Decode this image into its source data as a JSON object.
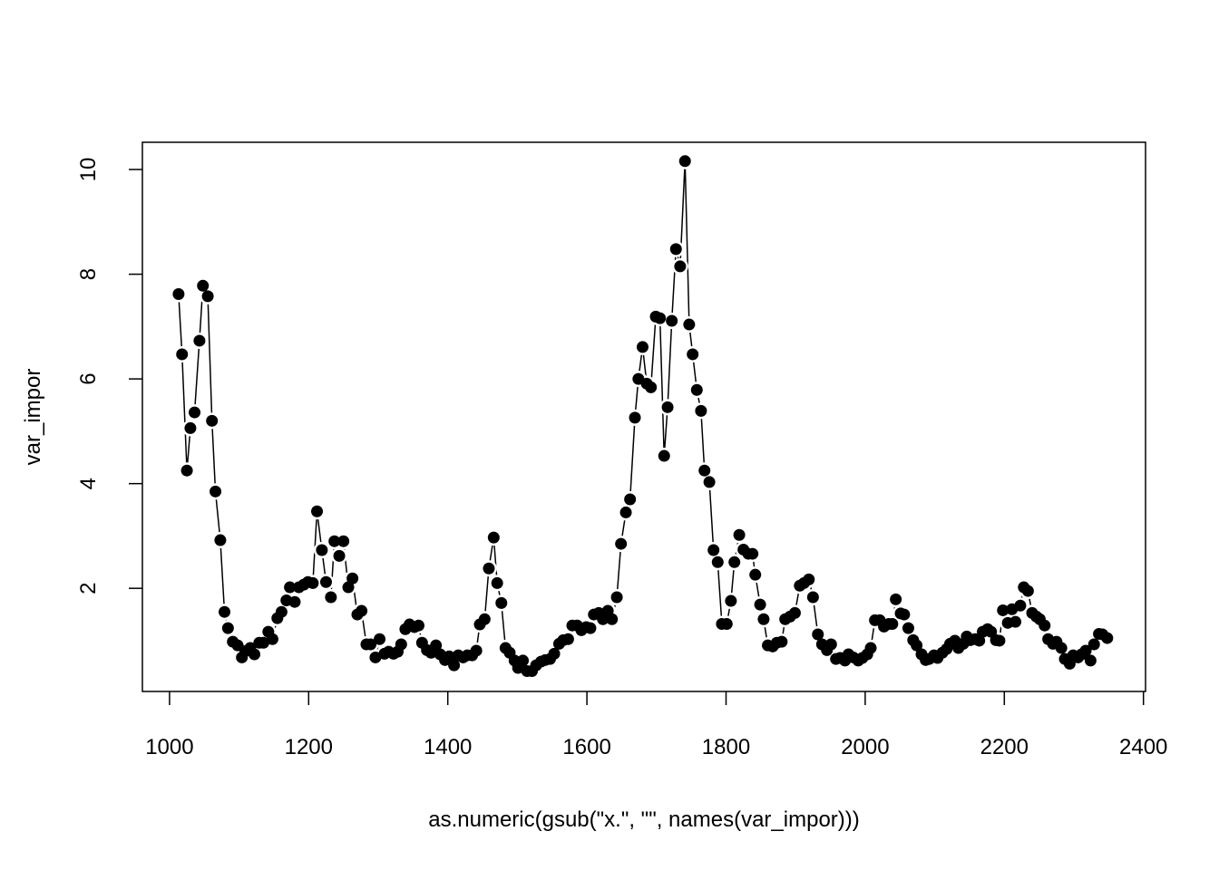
{
  "chart_data": {
    "type": "line-points",
    "xlabel": "as.numeric(gsub(\"x.\", \"\", names(var_impor)))",
    "ylabel": "var_impor",
    "xlim": [
      961,
      2403
    ],
    "ylim": [
      0.03,
      10.52
    ],
    "xticks": [
      1000,
      1200,
      1400,
      1600,
      1800,
      2000,
      2200,
      2400
    ],
    "yticks": [
      2,
      4,
      6,
      8,
      10
    ],
    "color": "#000000",
    "x": [
      1013,
      1018,
      1025,
      1030,
      1036,
      1043,
      1048,
      1055,
      1061,
      1066,
      1073,
      1079,
      1084,
      1091,
      1098,
      1104,
      1109,
      1116,
      1122,
      1129,
      1135,
      1142,
      1148,
      1155,
      1161,
      1168,
      1173,
      1180,
      1186,
      1193,
      1199,
      1206,
      1212,
      1219,
      1225,
      1232,
      1237,
      1244,
      1250,
      1257,
      1263,
      1270,
      1276,
      1283,
      1289,
      1296,
      1302,
      1309,
      1315,
      1322,
      1328,
      1333,
      1339,
      1345,
      1352,
      1358,
      1363,
      1370,
      1376,
      1383,
      1389,
      1396,
      1402,
      1409,
      1415,
      1422,
      1428,
      1435,
      1441,
      1446,
      1453,
      1459,
      1466,
      1471,
      1477,
      1483,
      1489,
      1496,
      1501,
      1508,
      1514,
      1521,
      1527,
      1534,
      1540,
      1547,
      1553,
      1560,
      1566,
      1573,
      1579,
      1586,
      1592,
      1599,
      1605,
      1610,
      1617,
      1623,
      1630,
      1636,
      1643,
      1649,
      1656,
      1662,
      1669,
      1674,
      1680,
      1686,
      1692,
      1699,
      1705,
      1711,
      1716,
      1722,
      1728,
      1734,
      1741,
      1747,
      1752,
      1758,
      1764,
      1769,
      1776,
      1782,
      1788,
      1794,
      1801,
      1807,
      1812,
      1819,
      1825,
      1832,
      1838,
      1842,
      1849,
      1854,
      1860,
      1867,
      1873,
      1880,
      1885,
      1892,
      1899,
      1906,
      1912,
      1919,
      1925,
      1932,
      1938,
      1945,
      1951,
      1958,
      1964,
      1971,
      1976,
      1983,
      1990,
      1996,
      2003,
      2008,
      2014,
      2021,
      2027,
      2034,
      2039,
      2044,
      2051,
      2056,
      2062,
      2069,
      2074,
      2081,
      2087,
      2092,
      2099,
      2104,
      2111,
      2117,
      2122,
      2129,
      2134,
      2141,
      2146,
      2151,
      2158,
      2164,
      2169,
      2176,
      2181,
      2188,
      2193,
      2198,
      2205,
      2211,
      2216,
      2223,
      2228,
      2234,
      2240,
      2246,
      2251,
      2258,
      2263,
      2270,
      2275,
      2282,
      2287,
      2294,
      2299,
      2306,
      2311,
      2317,
      2324,
      2329,
      2336,
      2341,
      2348
    ],
    "values": [
      7.62,
      6.47,
      4.25,
      5.06,
      5.36,
      6.73,
      7.78,
      7.58,
      5.2,
      3.85,
      2.92,
      1.55,
      1.24,
      0.98,
      0.91,
      0.68,
      0.8,
      0.86,
      0.74,
      0.96,
      0.96,
      1.17,
      1.03,
      1.43,
      1.55,
      1.77,
      2.02,
      1.74,
      2.02,
      2.07,
      2.12,
      2.1,
      3.47,
      2.73,
      2.12,
      1.83,
      2.9,
      2.62,
      2.9,
      2.02,
      2.19,
      1.5,
      1.57,
      0.93,
      0.93,
      0.68,
      1.03,
      0.75,
      0.79,
      0.75,
      0.79,
      0.93,
      1.22,
      1.31,
      1.26,
      1.29,
      0.96,
      0.82,
      0.77,
      0.91,
      0.74,
      0.63,
      0.7,
      0.53,
      0.72,
      0.68,
      0.72,
      0.72,
      0.81,
      1.31,
      1.41,
      2.38,
      2.97,
      2.1,
      1.72,
      0.86,
      0.77,
      0.62,
      0.48,
      0.62,
      0.42,
      0.42,
      0.53,
      0.6,
      0.63,
      0.65,
      0.75,
      0.94,
      1.01,
      1.03,
      1.29,
      1.29,
      1.2,
      1.26,
      1.24,
      1.5,
      1.53,
      1.41,
      1.57,
      1.41,
      1.83,
      2.85,
      3.45,
      3.7,
      5.26,
      6.0,
      6.61,
      5.91,
      5.84,
      7.19,
      7.16,
      4.53,
      5.46,
      7.11,
      8.48,
      8.15,
      10.16,
      7.04,
      6.47,
      5.79,
      5.39,
      4.25,
      4.03,
      2.73,
      2.5,
      1.32,
      1.32,
      1.76,
      2.5,
      3.02,
      2.74,
      2.66,
      2.66,
      2.26,
      1.69,
      1.41,
      0.91,
      0.89,
      0.96,
      0.98,
      1.41,
      1.46,
      1.53,
      2.05,
      2.1,
      2.17,
      1.83,
      1.12,
      0.93,
      0.82,
      0.93,
      0.65,
      0.67,
      0.62,
      0.74,
      0.68,
      0.62,
      0.67,
      0.74,
      0.86,
      1.39,
      1.39,
      1.27,
      1.32,
      1.32,
      1.79,
      1.52,
      1.5,
      1.24,
      1.01,
      0.91,
      0.74,
      0.63,
      0.65,
      0.72,
      0.67,
      0.77,
      0.84,
      0.94,
      1.0,
      0.86,
      0.94,
      1.08,
      1.01,
      1.03,
      1.0,
      1.17,
      1.22,
      1.17,
      1.01,
      1.0,
      1.58,
      1.34,
      1.6,
      1.36,
      1.67,
      2.02,
      1.95,
      1.53,
      1.46,
      1.41,
      1.29,
      1.03,
      0.94,
      0.98,
      0.86,
      0.65,
      0.56,
      0.72,
      0.68,
      0.74,
      0.81,
      0.62,
      0.93,
      1.13,
      1.12,
      1.05
    ]
  }
}
